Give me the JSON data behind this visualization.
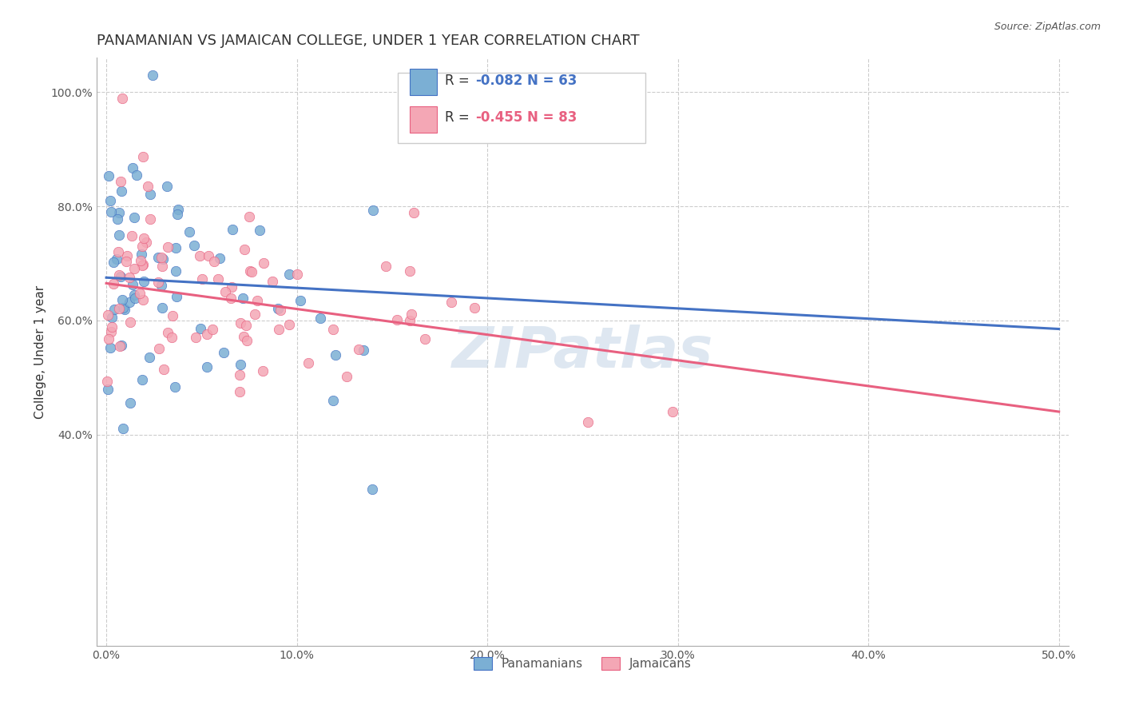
{
  "title": "PANAMANIAN VS JAMAICAN COLLEGE, UNDER 1 YEAR CORRELATION CHART",
  "source": "Source: ZipAtlas.com",
  "xlabel_ticks": [
    "0.0%",
    "10.0%",
    "20.0%",
    "30.0%",
    "40.0%",
    "50.0%"
  ],
  "xlabel_vals": [
    0.0,
    0.1,
    0.2,
    0.3,
    0.4,
    0.5
  ],
  "ylabel": "College, Under 1 year",
  "ylabel_ticks": [
    "40.0%",
    "60.0%",
    "80.0%",
    "100.0%"
  ],
  "ylabel_vals": [
    0.4,
    0.6,
    0.8,
    1.0
  ],
  "xlim": [
    -0.005,
    0.505
  ],
  "ylim": [
    0.03,
    1.06
  ],
  "legend_labels": [
    "Panamanians",
    "Jamaicans"
  ],
  "legend_R": [
    "R = -0.082",
    "R = -0.455"
  ],
  "legend_N": [
    "N = 63",
    "N = 83"
  ],
  "scatter_color_pan": "#7BAFD4",
  "scatter_color_jam": "#F4A7B5",
  "line_color_pan": "#4472C4",
  "line_color_jam": "#E86080",
  "watermark": "ZIPatlas",
  "watermark_color": "#c8d8e8",
  "pan_R": -0.082,
  "pan_N": 63,
  "jam_R": -0.455,
  "jam_N": 83,
  "pan_line_x": [
    0.0,
    0.5
  ],
  "pan_line_y": [
    0.675,
    0.585
  ],
  "jam_line_x": [
    0.0,
    0.5
  ],
  "jam_line_y": [
    0.665,
    0.44
  ],
  "background_color": "#ffffff",
  "grid_color": "#cccccc",
  "title_fontsize": 13,
  "axis_label_fontsize": 11,
  "tick_fontsize": 10
}
